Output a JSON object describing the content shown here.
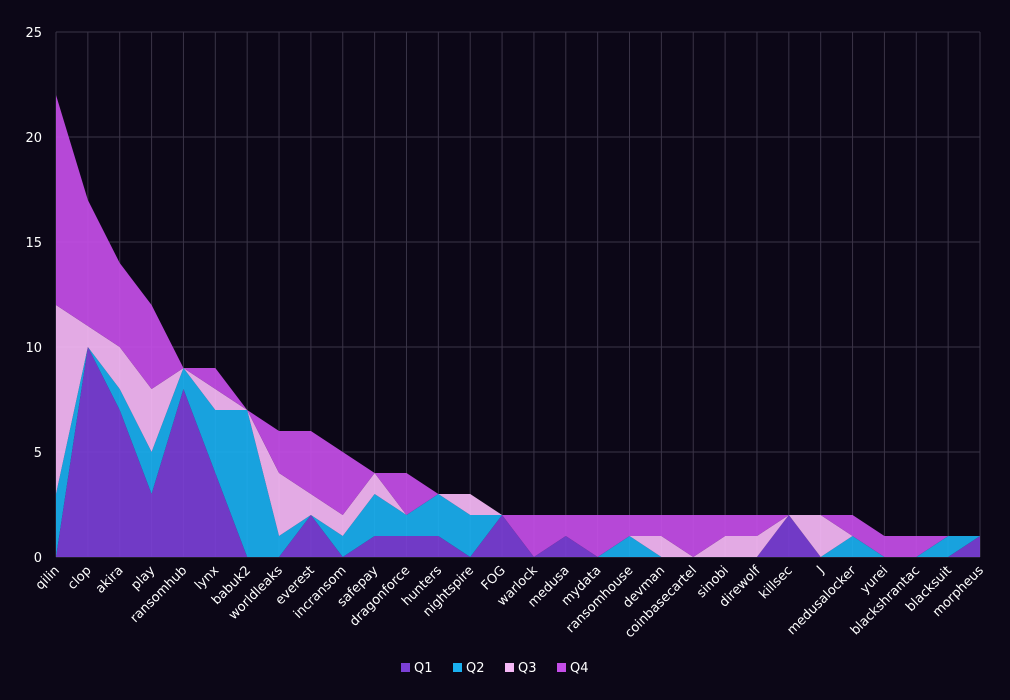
{
  "chart_data": {
    "type": "area",
    "stacked": true,
    "grid": true,
    "legend_position": "bottom",
    "ylim": [
      0,
      25
    ],
    "yticks": [
      0,
      5,
      10,
      15,
      20,
      25
    ],
    "categories": [
      "qilin",
      "clop",
      "akira",
      "play",
      "ransomhub",
      "lynx",
      "babuk2",
      "worldleaks",
      "everest",
      "incransom",
      "safepay",
      "dragonforce",
      "hunters",
      "nightspire",
      "FOG",
      "warlock",
      "medusa",
      "mydata",
      "ransomhouse",
      "devman",
      "coinbasecartel",
      "sinobi",
      "direwolf",
      "killsec",
      "J",
      "medusalocker",
      "yurei",
      "blackshrantac",
      "blacksuit",
      "morpheus"
    ],
    "series": [
      {
        "name": "Q1",
        "color": "#7b3fd6",
        "values": [
          0,
          10,
          7,
          3,
          8,
          4,
          0,
          0,
          2,
          0,
          1,
          1,
          1,
          0,
          2,
          0,
          1,
          0,
          0,
          0,
          0,
          0,
          0,
          2,
          0,
          0,
          0,
          0,
          0,
          1
        ]
      },
      {
        "name": "Q2",
        "color": "#1ab0f0",
        "values": [
          3,
          0,
          1,
          2,
          1,
          3,
          7,
          1,
          0,
          1,
          2,
          1,
          2,
          2,
          0,
          0,
          0,
          0,
          1,
          0,
          0,
          0,
          0,
          0,
          0,
          1,
          0,
          0,
          1,
          0
        ]
      },
      {
        "name": "Q3",
        "color": "#f6b9f6",
        "values": [
          9,
          1,
          2,
          3,
          0,
          1,
          0,
          3,
          1,
          1,
          1,
          0,
          0,
          1,
          0,
          0,
          0,
          0,
          0,
          1,
          0,
          1,
          1,
          0,
          2,
          0,
          0,
          0,
          0,
          0
        ]
      },
      {
        "name": "Q4",
        "color": "#c54ee8",
        "values": [
          10,
          6,
          4,
          4,
          0,
          1,
          0,
          2,
          3,
          3,
          0,
          2,
          0,
          0,
          0,
          2,
          1,
          2,
          1,
          1,
          2,
          1,
          1,
          0,
          0,
          1,
          1,
          1,
          0,
          0
        ]
      }
    ]
  }
}
